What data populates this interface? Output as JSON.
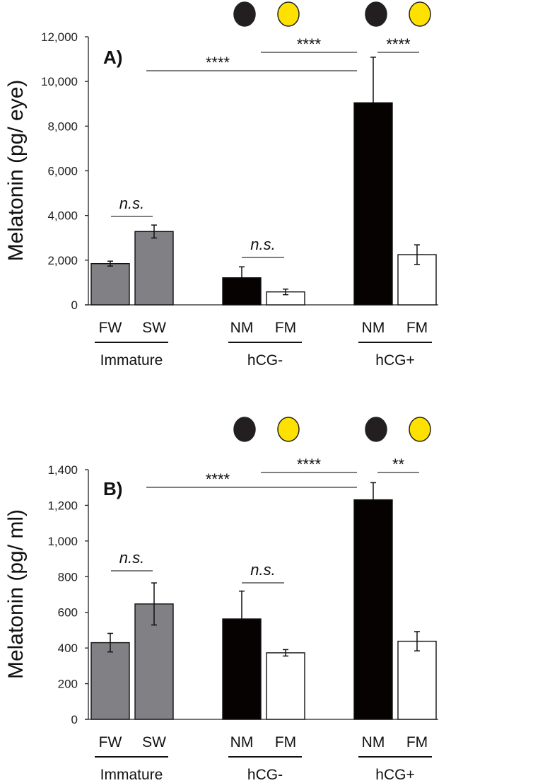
{
  "chart_data": [
    {
      "type": "bar",
      "panel_label": "A)",
      "ylabel": "Melatonin (pg/ eye)",
      "ylim": [
        0,
        12000
      ],
      "yticks": [
        "0",
        "2,000",
        "4,000",
        "6,000",
        "8,000",
        "10,000",
        "12,000"
      ],
      "ytick_values": [
        0,
        2000,
        4000,
        6000,
        8000,
        10000,
        12000
      ],
      "categories": [
        "FW",
        "SW",
        "NM",
        "FM",
        "NM",
        "FM"
      ],
      "groups": [
        {
          "label": "Immature",
          "members": [
            0,
            1
          ]
        },
        {
          "label": "hCG-",
          "members": [
            2,
            3
          ]
        },
        {
          "label": "hCG+",
          "members": [
            4,
            5
          ]
        }
      ],
      "values": [
        1846,
        3283,
        1213,
        580,
        9046,
        2248
      ],
      "errors": [
        110,
        290,
        490,
        125,
        2040,
        440
      ],
      "error_style": [
        "both",
        "both",
        "up",
        "both",
        "up",
        "both"
      ],
      "bar_colors": [
        "#808085",
        "#808085",
        "#060202",
        "#ffffff",
        "#060202",
        "#ffffff"
      ],
      "top_markers": [
        {
          "category_index": 2,
          "color": "#231f20"
        },
        {
          "category_index": 3,
          "color": "#ffe100"
        },
        {
          "category_index": 4,
          "color": "#231f20"
        },
        {
          "category_index": 5,
          "color": "#ffe100"
        }
      ],
      "comparisons": [
        {
          "from": 0,
          "to": 1,
          "label": "n.s."
        },
        {
          "from": 2,
          "to": 3,
          "label": "n.s."
        },
        {
          "from": 1,
          "to": 4,
          "label": "****"
        },
        {
          "from": 3,
          "to": 4,
          "label": "****"
        },
        {
          "from": 4,
          "to": 5,
          "label": "****"
        }
      ]
    },
    {
      "type": "bar",
      "panel_label": "B)",
      "ylabel": "Melatonin (pg/ ml)",
      "ylim": [
        0,
        1400
      ],
      "yticks": [
        "0",
        "200",
        "400",
        "600",
        "800",
        "1,000",
        "1,200",
        "1,400"
      ],
      "ytick_values": [
        0,
        200,
        400,
        600,
        800,
        1000,
        1200,
        1400
      ],
      "categories": [
        "FW",
        "SW",
        "NM",
        "FM",
        "NM",
        "FM"
      ],
      "groups": [
        {
          "label": "Immature",
          "members": [
            0,
            1
          ]
        },
        {
          "label": "hCG-",
          "members": [
            2,
            3
          ]
        },
        {
          "label": "hCG+",
          "members": [
            4,
            5
          ]
        }
      ],
      "values": [
        430,
        647,
        563,
        373,
        1231,
        438
      ],
      "errors": [
        52,
        118,
        156,
        18,
        96,
        54
      ],
      "error_style": [
        "both",
        "both",
        "up",
        "both",
        "up",
        "both"
      ],
      "bar_colors": [
        "#808085",
        "#808085",
        "#060202",
        "#ffffff",
        "#060202",
        "#ffffff"
      ],
      "top_markers": [
        {
          "category_index": 2,
          "color": "#231f20"
        },
        {
          "category_index": 3,
          "color": "#ffe100"
        },
        {
          "category_index": 4,
          "color": "#231f20"
        },
        {
          "category_index": 5,
          "color": "#ffe100"
        }
      ],
      "comparisons": [
        {
          "from": 0,
          "to": 1,
          "label": "n.s."
        },
        {
          "from": 2,
          "to": 3,
          "label": "n.s."
        },
        {
          "from": 1,
          "to": 4,
          "label": "****"
        },
        {
          "from": 3,
          "to": 4,
          "label": "****"
        },
        {
          "from": 4,
          "to": 5,
          "label": "**"
        }
      ]
    }
  ]
}
